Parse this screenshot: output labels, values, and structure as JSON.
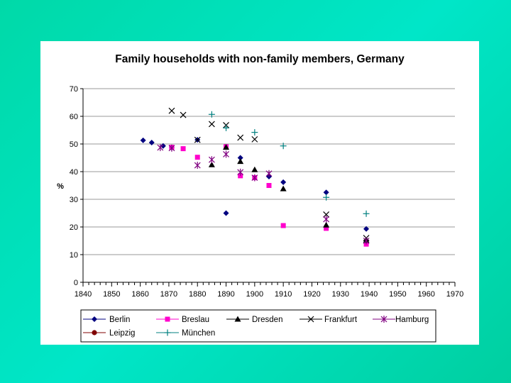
{
  "chart_data": {
    "type": "scatter",
    "title": "Family households with non-family members, Germany",
    "xlabel": "",
    "ylabel": "%",
    "xlim": [
      1840,
      1970
    ],
    "ylim": [
      0,
      70
    ],
    "x_ticks": [
      1840,
      1850,
      1860,
      1870,
      1880,
      1890,
      1900,
      1910,
      1920,
      1930,
      1940,
      1950,
      1960,
      1970
    ],
    "y_ticks": [
      0,
      10,
      20,
      30,
      40,
      50,
      60,
      70
    ],
    "grid": "horizontal",
    "legend_position": "bottom",
    "series": [
      {
        "name": "Berlin",
        "color": "#000080",
        "marker": "diamond",
        "points": [
          [
            1861,
            51.3
          ],
          [
            1864,
            50.5
          ],
          [
            1868,
            49.3
          ],
          [
            1871,
            48.7
          ],
          [
            1880,
            51.5
          ],
          [
            1890,
            25.0
          ],
          [
            1895,
            45.0
          ],
          [
            1905,
            38.2
          ],
          [
            1910,
            36.2
          ],
          [
            1925,
            32.5
          ],
          [
            1939,
            19.3
          ]
        ]
      },
      {
        "name": "Breslau",
        "color": "#FF00CC",
        "marker": "square",
        "points": [
          [
            1871,
            48.8
          ],
          [
            1875,
            48.3
          ],
          [
            1880,
            45.2
          ],
          [
            1890,
            49.0
          ],
          [
            1895,
            38.5
          ],
          [
            1900,
            37.8
          ],
          [
            1905,
            35.0
          ],
          [
            1910,
            20.5
          ],
          [
            1925,
            19.5
          ],
          [
            1939,
            13.8
          ]
        ]
      },
      {
        "name": "Dresden",
        "color": "#000000",
        "marker": "triangle",
        "points": [
          [
            1885,
            42.5
          ],
          [
            1890,
            48.8
          ],
          [
            1895,
            43.7
          ],
          [
            1900,
            40.7
          ],
          [
            1910,
            33.8
          ],
          [
            1925,
            20.7
          ],
          [
            1939,
            15.2
          ]
        ]
      },
      {
        "name": "Frankfurt",
        "color": "#000000",
        "marker": "x",
        "points": [
          [
            1871,
            62.0
          ],
          [
            1875,
            60.5
          ],
          [
            1880,
            51.5
          ],
          [
            1885,
            57.2
          ],
          [
            1890,
            56.8
          ],
          [
            1895,
            52.3
          ],
          [
            1900,
            51.7
          ],
          [
            1925,
            24.5
          ],
          [
            1939,
            16.0
          ]
        ]
      },
      {
        "name": "Hamburg",
        "color": "#800080",
        "marker": "asterisk",
        "points": [
          [
            1867,
            48.7
          ],
          [
            1871,
            48.5
          ],
          [
            1880,
            42.3
          ],
          [
            1885,
            44.3
          ],
          [
            1890,
            46.3
          ],
          [
            1895,
            39.8
          ],
          [
            1900,
            37.8
          ],
          [
            1905,
            39.3
          ],
          [
            1925,
            22.8
          ],
          [
            1939,
            15.0
          ]
        ]
      },
      {
        "name": "Leipzig",
        "color": "#800000",
        "marker": "circle",
        "points": []
      },
      {
        "name": "München",
        "color": "#008080",
        "marker": "plus",
        "points": [
          [
            1885,
            60.7
          ],
          [
            1890,
            55.8
          ],
          [
            1900,
            54.2
          ],
          [
            1910,
            49.3
          ],
          [
            1925,
            30.7
          ],
          [
            1939,
            24.8
          ]
        ]
      }
    ]
  }
}
